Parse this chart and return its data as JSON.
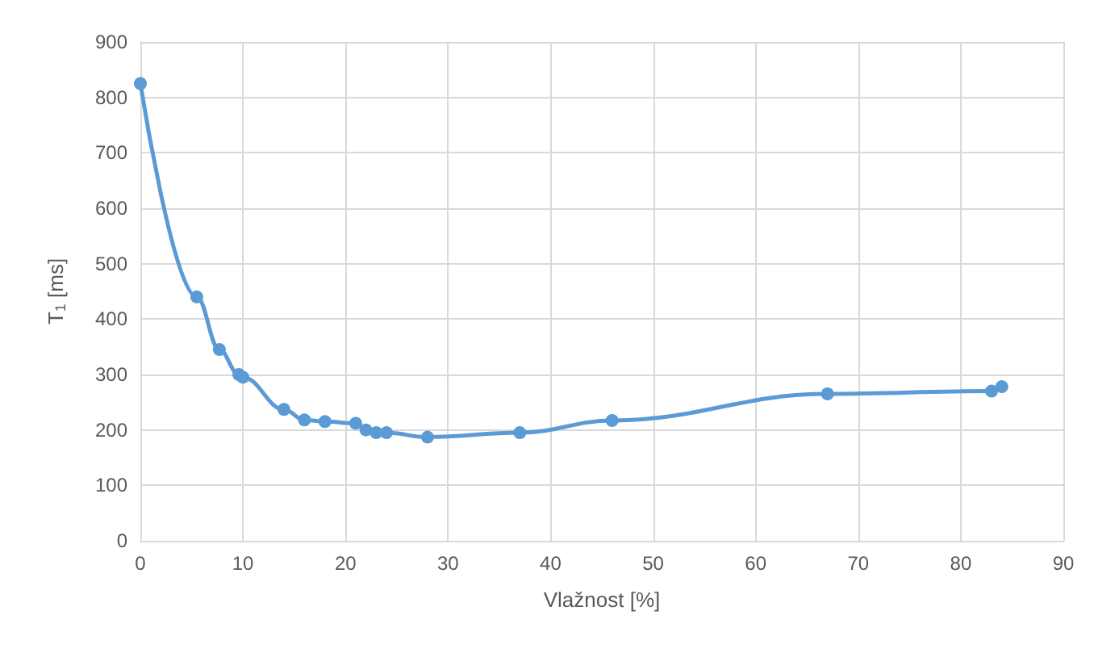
{
  "chart_data": {
    "type": "line",
    "xlabel": "Vlažnost [%]",
    "ylabel": "T$_{1}$ [ms]",
    "x": [
      0,
      5.5,
      7.7,
      9.6,
      10,
      14,
      16,
      18,
      21,
      22,
      23,
      24,
      28,
      37,
      46,
      67,
      83,
      84
    ],
    "series": [
      {
        "color": "#5b9bd5",
        "values": [
          825,
          440,
          345,
          300,
          295,
          237,
          218,
          215,
          212,
          200,
          195,
          195,
          187,
          195,
          217,
          265,
          270,
          278
        ]
      }
    ],
    "xlim": [
      0,
      90
    ],
    "xticks": [
      0,
      10,
      20,
      30,
      40,
      50,
      60,
      70,
      80,
      90
    ],
    "ylim": [
      0,
      900
    ],
    "yticks": [
      0,
      100,
      200,
      300,
      400,
      500,
      600,
      700,
      800,
      900
    ],
    "grid": true,
    "marker": "circle",
    "line_style": "solid"
  }
}
